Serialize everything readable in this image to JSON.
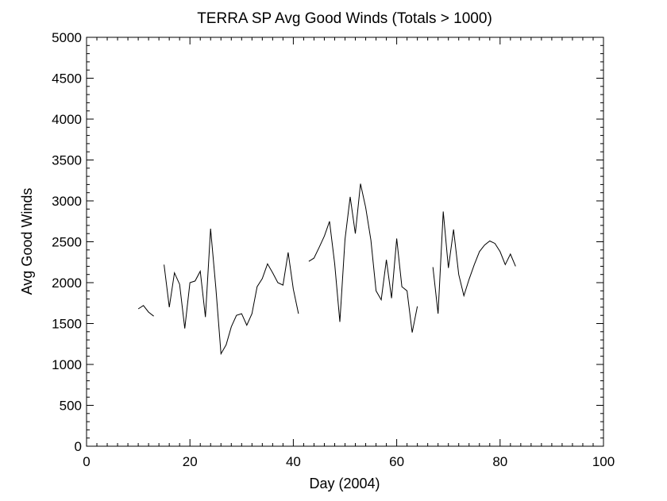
{
  "chart_data": {
    "type": "line",
    "title": "TERRA SP Avg Good Winds (Totals > 1000)",
    "xlabel": "Day (2004)",
    "ylabel": "Avg Good Winds",
    "xlim": [
      0,
      100
    ],
    "ylim": [
      0,
      5000
    ],
    "x_ticks": [
      0,
      20,
      40,
      60,
      80,
      100
    ],
    "y_ticks": [
      0,
      500,
      1000,
      1500,
      2000,
      2500,
      3000,
      3500,
      4000,
      4500,
      5000
    ],
    "x_minor_step": 2,
    "y_minor_step": 100,
    "grid": false,
    "legend": "none",
    "line_color": "#000000",
    "series": [
      {
        "segments": [
          [
            [
              10,
              1680
            ],
            [
              11,
              1720
            ],
            [
              12,
              1640
            ],
            [
              13,
              1590
            ]
          ],
          [
            [
              15,
              2220
            ],
            [
              16,
              1700
            ],
            [
              17,
              2120
            ],
            [
              18,
              1980
            ],
            [
              19,
              1440
            ],
            [
              20,
              2000
            ],
            [
              21,
              2020
            ],
            [
              22,
              2140
            ],
            [
              23,
              1580
            ],
            [
              24,
              2660
            ],
            [
              25,
              1940
            ],
            [
              26,
              1130
            ],
            [
              27,
              1240
            ],
            [
              28,
              1460
            ],
            [
              29,
              1600
            ],
            [
              30,
              1620
            ],
            [
              31,
              1480
            ],
            [
              32,
              1620
            ],
            [
              33,
              1950
            ],
            [
              34,
              2050
            ],
            [
              35,
              2230
            ],
            [
              36,
              2120
            ],
            [
              37,
              2000
            ],
            [
              38,
              1970
            ],
            [
              39,
              2370
            ],
            [
              40,
              1920
            ],
            [
              41,
              1620
            ]
          ],
          [
            [
              43,
              2260
            ],
            [
              44,
              2300
            ],
            [
              45,
              2430
            ],
            [
              46,
              2570
            ],
            [
              47,
              2750
            ],
            [
              48,
              2230
            ],
            [
              49,
              1520
            ],
            [
              50,
              2530
            ],
            [
              51,
              3050
            ],
            [
              52,
              2600
            ],
            [
              53,
              3210
            ],
            [
              54,
              2920
            ],
            [
              55,
              2520
            ],
            [
              56,
              1900
            ],
            [
              57,
              1790
            ],
            [
              58,
              2280
            ],
            [
              59,
              1810
            ],
            [
              60,
              2540
            ],
            [
              61,
              1950
            ],
            [
              62,
              1900
            ],
            [
              63,
              1390
            ],
            [
              64,
              1710
            ]
          ],
          [
            [
              67,
              2190
            ],
            [
              68,
              1620
            ],
            [
              69,
              2870
            ],
            [
              70,
              2180
            ],
            [
              71,
              2650
            ],
            [
              72,
              2100
            ],
            [
              73,
              1840
            ],
            [
              74,
              2040
            ],
            [
              75,
              2220
            ],
            [
              76,
              2380
            ],
            [
              77,
              2460
            ],
            [
              78,
              2510
            ],
            [
              79,
              2480
            ],
            [
              80,
              2380
            ],
            [
              81,
              2220
            ],
            [
              82,
              2350
            ],
            [
              83,
              2200
            ]
          ]
        ]
      }
    ]
  }
}
